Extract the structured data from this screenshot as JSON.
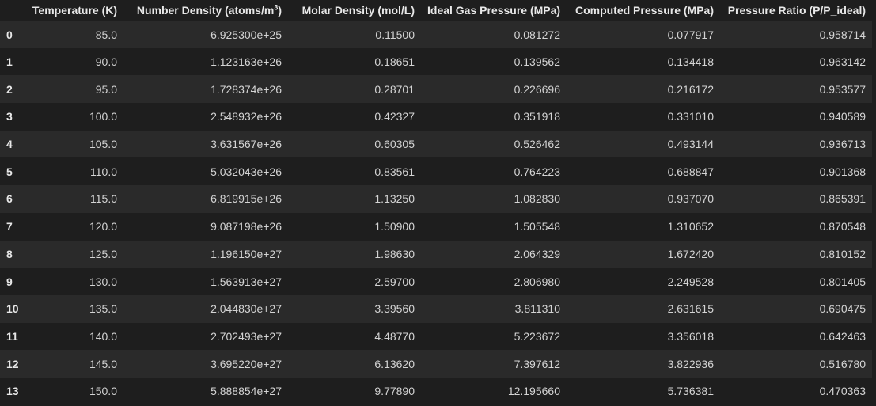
{
  "table": {
    "columns": {
      "index": "",
      "temperature": "Temperature (K)",
      "number_density_prefix": "Number Density (atoms/m",
      "number_density_sup": "3",
      "number_density_suffix": ")",
      "molar_density": "Molar Density (mol/L)",
      "ideal_pressure": "Ideal Gas Pressure (MPa)",
      "computed_pressure": "Computed Pressure (MPa)",
      "pressure_ratio": "Pressure Ratio (P/P_ideal)"
    },
    "rows": [
      {
        "index": "0",
        "temperature": "85.0",
        "number_density": "6.925300e+25",
        "molar_density": "0.11500",
        "ideal_pressure": "0.081272",
        "computed_pressure": "0.077917",
        "pressure_ratio": "0.958714"
      },
      {
        "index": "1",
        "temperature": "90.0",
        "number_density": "1.123163e+26",
        "molar_density": "0.18651",
        "ideal_pressure": "0.139562",
        "computed_pressure": "0.134418",
        "pressure_ratio": "0.963142"
      },
      {
        "index": "2",
        "temperature": "95.0",
        "number_density": "1.728374e+26",
        "molar_density": "0.28701",
        "ideal_pressure": "0.226696",
        "computed_pressure": "0.216172",
        "pressure_ratio": "0.953577"
      },
      {
        "index": "3",
        "temperature": "100.0",
        "number_density": "2.548932e+26",
        "molar_density": "0.42327",
        "ideal_pressure": "0.351918",
        "computed_pressure": "0.331010",
        "pressure_ratio": "0.940589"
      },
      {
        "index": "4",
        "temperature": "105.0",
        "number_density": "3.631567e+26",
        "molar_density": "0.60305",
        "ideal_pressure": "0.526462",
        "computed_pressure": "0.493144",
        "pressure_ratio": "0.936713"
      },
      {
        "index": "5",
        "temperature": "110.0",
        "number_density": "5.032043e+26",
        "molar_density": "0.83561",
        "ideal_pressure": "0.764223",
        "computed_pressure": "0.688847",
        "pressure_ratio": "0.901368"
      },
      {
        "index": "6",
        "temperature": "115.0",
        "number_density": "6.819915e+26",
        "molar_density": "1.13250",
        "ideal_pressure": "1.082830",
        "computed_pressure": "0.937070",
        "pressure_ratio": "0.865391"
      },
      {
        "index": "7",
        "temperature": "120.0",
        "number_density": "9.087198e+26",
        "molar_density": "1.50900",
        "ideal_pressure": "1.505548",
        "computed_pressure": "1.310652",
        "pressure_ratio": "0.870548"
      },
      {
        "index": "8",
        "temperature": "125.0",
        "number_density": "1.196150e+27",
        "molar_density": "1.98630",
        "ideal_pressure": "2.064329",
        "computed_pressure": "1.672420",
        "pressure_ratio": "0.810152"
      },
      {
        "index": "9",
        "temperature": "130.0",
        "number_density": "1.563913e+27",
        "molar_density": "2.59700",
        "ideal_pressure": "2.806980",
        "computed_pressure": "2.249528",
        "pressure_ratio": "0.801405"
      },
      {
        "index": "10",
        "temperature": "135.0",
        "number_density": "2.044830e+27",
        "molar_density": "3.39560",
        "ideal_pressure": "3.811310",
        "computed_pressure": "2.631615",
        "pressure_ratio": "0.690475"
      },
      {
        "index": "11",
        "temperature": "140.0",
        "number_density": "2.702493e+27",
        "molar_density": "4.48770",
        "ideal_pressure": "5.223672",
        "computed_pressure": "3.356018",
        "pressure_ratio": "0.642463"
      },
      {
        "index": "12",
        "temperature": "145.0",
        "number_density": "3.695220e+27",
        "molar_density": "6.13620",
        "ideal_pressure": "7.397612",
        "computed_pressure": "3.822936",
        "pressure_ratio": "0.516780"
      },
      {
        "index": "13",
        "temperature": "150.0",
        "number_density": "5.888854e+27",
        "molar_density": "9.77890",
        "ideal_pressure": "12.195660",
        "computed_pressure": "5.736381",
        "pressure_ratio": "0.470363"
      }
    ]
  },
  "colors": {
    "background": "#1e1e1e",
    "row_alt": "#2a2a2a",
    "text": "#d4d4d4",
    "header_text": "#e8e8e8",
    "header_rule": "#bdbdbd"
  }
}
